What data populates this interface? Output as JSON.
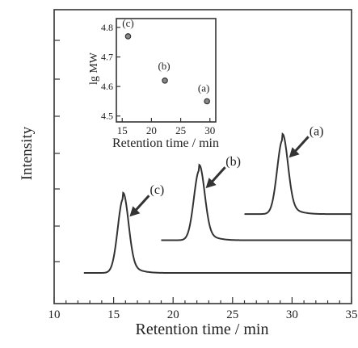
{
  "chart_data": [
    {
      "type": "line",
      "xlabel": "Retention time / min",
      "ylabel": "Intensity",
      "xlim": [
        10,
        35
      ],
      "x_ticks": [
        10,
        15,
        20,
        25,
        30,
        35
      ],
      "series": [
        {
          "name": "(c)",
          "peak_x": 15.8,
          "x_start": 12.5,
          "x_end": 35,
          "baseline_level": 0.0,
          "peak_height": 0.34
        },
        {
          "name": "(b)",
          "peak_x": 22.2,
          "x_start": 19.0,
          "x_end": 35,
          "baseline_level": 0.15,
          "peak_height": 0.32
        },
        {
          "name": "(a)",
          "peak_x": 29.2,
          "x_start": 26.0,
          "x_end": 35,
          "baseline_level": 0.27,
          "peak_height": 0.34
        }
      ]
    },
    {
      "type": "scatter",
      "xlabel": "Retention time / min",
      "ylabel": "lg MW",
      "xlim": [
        14,
        31
      ],
      "ylim": [
        4.48,
        4.83
      ],
      "x_ticks": [
        15,
        20,
        25,
        30
      ],
      "y_ticks": [
        4.5,
        4.6,
        4.7,
        4.8
      ],
      "points": [
        {
          "label": "(c)",
          "x": 16.0,
          "y": 4.77
        },
        {
          "label": "(b)",
          "x": 22.3,
          "y": 4.62
        },
        {
          "label": "(a)",
          "x": 29.5,
          "y": 4.55
        }
      ]
    }
  ]
}
